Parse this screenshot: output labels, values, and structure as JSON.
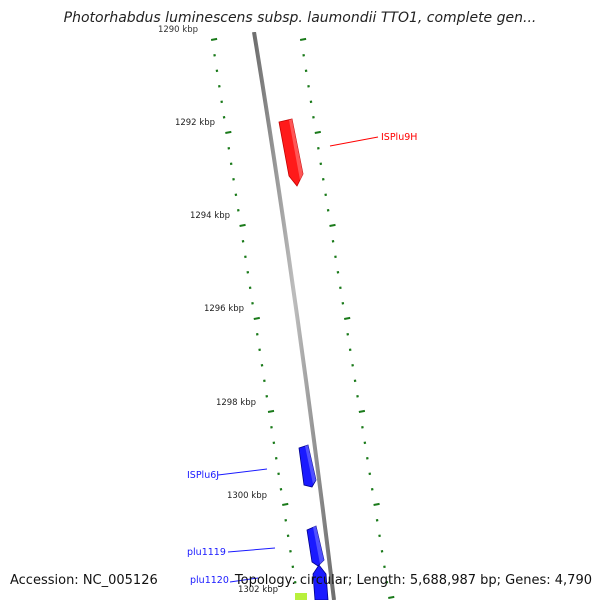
{
  "title": "Photorhabdus luminescens subsp. laumondii TTO1, complete gen...",
  "accession": "Accession: NC_005126",
  "summary": "Topology: circular; Length: 5,688,987 bp; Genes: 4,790",
  "axis_labels": [
    {
      "text": "1290 kbp"
    },
    {
      "text": "1292 kbp"
    },
    {
      "text": "1294 kbp"
    },
    {
      "text": "1296 kbp"
    },
    {
      "text": "1298 kbp"
    },
    {
      "text": "1300 kbp"
    },
    {
      "text": "1302 kbp"
    }
  ],
  "features": [
    {
      "label": "ISPlu9H",
      "color": "#ff0000"
    },
    {
      "label": "ISPlu6J",
      "color": "#1a1aff"
    },
    {
      "label": "plu1119",
      "color": "#1a1aff"
    },
    {
      "label": "plu1120",
      "color": "#1a1aff"
    }
  ],
  "colors": {
    "backbone": "#8c8c8c",
    "gc_skew": "#1a7a1a",
    "partial_feature": "#b8f03c"
  }
}
